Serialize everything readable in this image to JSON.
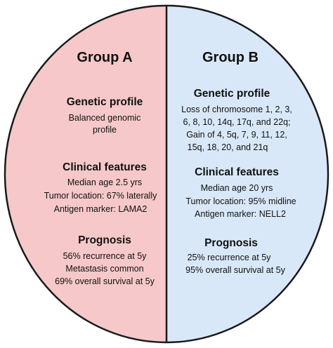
{
  "colors": {
    "group_a_fill": "#f6c8c9",
    "group_b_fill": "#d9e8f8",
    "outline": "#1a1a1a",
    "text": "#111111"
  },
  "group_a": {
    "title": "Group A",
    "genetic_profile": {
      "heading": "Genetic profile",
      "lines": [
        "Balanced genomic",
        "profile"
      ]
    },
    "clinical_features": {
      "heading": "Clinical features",
      "lines": [
        "Median age 2.5 yrs",
        "Tumor location: 67%  laterally",
        "Antigen marker: LAMA2"
      ]
    },
    "prognosis": {
      "heading": "Prognosis",
      "lines": [
        "56% recurrence at 5y",
        "Metastasis common",
        "69% overall survival at 5y"
      ]
    }
  },
  "group_b": {
    "title": "Group B",
    "genetic_profile": {
      "heading": "Genetic profile",
      "lines": [
        "Loss of chromosome 1, 2, 3,",
        "6, 8, 10, 14q, 17q, and 22q;",
        "Gain of 4, 5q, 7, 9, 11, 12,",
        "15q, 18, 20, and 21q"
      ]
    },
    "clinical_features": {
      "heading": "Clinical features",
      "lines": [
        "Median age 20 yrs",
        "Tumor location: 95% midline",
        "Antigen marker: NELL2"
      ]
    },
    "prognosis": {
      "heading": "Prognosis",
      "lines": [
        "25% recurrence at 5y",
        "95% overall survival at 5y"
      ]
    }
  }
}
